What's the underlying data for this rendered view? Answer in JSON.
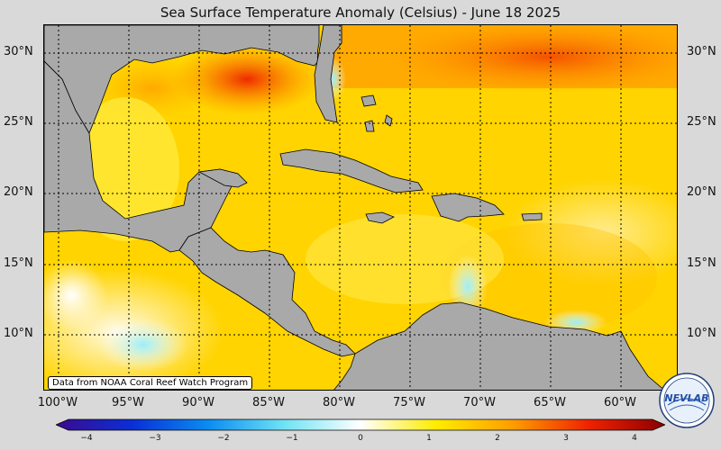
{
  "title": "Sea Surface Temperature Anomaly (Celsius) - June 18 2025",
  "credit": "Data from NOAA Coral Reef Watch Program",
  "lat_labels": [
    "30°N",
    "25°N",
    "20°N",
    "15°N",
    "10°N"
  ],
  "lon_labels": [
    "100°W",
    "95°W",
    "90°W",
    "85°W",
    "80°W",
    "75°W",
    "70°W",
    "65°W",
    "60°W"
  ],
  "colorbar": {
    "ticks": [
      "−4",
      "−3",
      "−2",
      "−1",
      "0",
      "1",
      "2",
      "3",
      "4"
    ],
    "colors": [
      "#3b0a8f",
      "#0a2fd6",
      "#0b8cf2",
      "#6fe3f4",
      "#ffffff",
      "#ffec00",
      "#ff9d00",
      "#ee2200",
      "#8a0000"
    ]
  },
  "logo_text": "NEVLAB",
  "colors": {
    "land": "#a9a9a9",
    "background": "#d9d9d9"
  }
}
